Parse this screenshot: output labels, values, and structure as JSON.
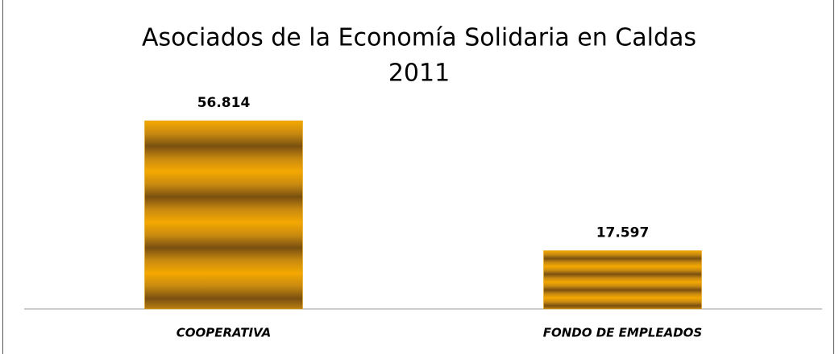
{
  "chart_data": {
    "type": "bar",
    "title": "Asociados de la Economía Solidaria en Caldas",
    "subtitle": "2011",
    "categories": [
      "COOPERATIVA",
      "FONDO DE EMPLEADOS"
    ],
    "values": [
      56814,
      17597
    ],
    "value_labels": [
      "56.814",
      "17.597"
    ],
    "color": "#e8a000",
    "ylim": [
      0,
      60000
    ]
  }
}
